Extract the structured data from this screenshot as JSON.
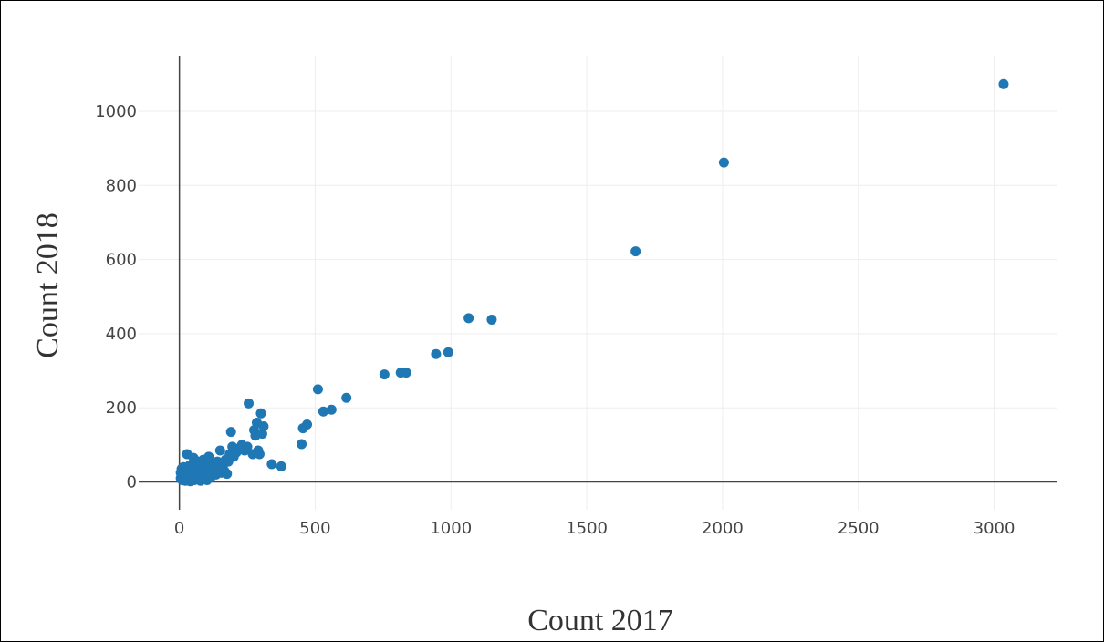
{
  "chart_data": {
    "type": "scatter",
    "xlabel": "Count 2017",
    "ylabel": "Count 2018",
    "xlim": [
      -150,
      3230
    ],
    "ylim": [
      -75,
      1150
    ],
    "x_ticks": [
      0,
      500,
      1000,
      1500,
      2000,
      2500,
      3000
    ],
    "y_ticks": [
      0,
      200,
      400,
      600,
      800,
      1000
    ],
    "grid": true,
    "marker_color": "#1f77b4",
    "gridline_color": "#eeeeee",
    "zeroline_color": "#444444",
    "series": [
      {
        "points": [
          [
            5,
            10
          ],
          [
            5,
            25
          ],
          [
            8,
            35
          ],
          [
            10,
            5
          ],
          [
            12,
            18
          ],
          [
            15,
            40
          ],
          [
            18,
            28
          ],
          [
            20,
            12
          ],
          [
            22,
            3
          ],
          [
            25,
            22
          ],
          [
            28,
            75
          ],
          [
            30,
            8
          ],
          [
            32,
            30
          ],
          [
            35,
            15
          ],
          [
            38,
            45
          ],
          [
            40,
            2
          ],
          [
            42,
            20
          ],
          [
            45,
            10
          ],
          [
            48,
            35
          ],
          [
            50,
            25
          ],
          [
            52,
            65
          ],
          [
            55,
            5
          ],
          [
            58,
            15
          ],
          [
            60,
            40
          ],
          [
            62,
            30
          ],
          [
            65,
            8
          ],
          [
            68,
            55
          ],
          [
            70,
            20
          ],
          [
            72,
            12
          ],
          [
            75,
            45
          ],
          [
            78,
            3
          ],
          [
            80,
            30
          ],
          [
            82,
            50
          ],
          [
            85,
            18
          ],
          [
            88,
            60
          ],
          [
            90,
            8
          ],
          [
            92,
            35
          ],
          [
            95,
            25
          ],
          [
            98,
            40
          ],
          [
            100,
            15
          ],
          [
            102,
            5
          ],
          [
            105,
            30
          ],
          [
            108,
            68
          ],
          [
            110,
            20
          ],
          [
            112,
            50
          ],
          [
            115,
            12
          ],
          [
            118,
            35
          ],
          [
            120,
            25
          ],
          [
            125,
            45
          ],
          [
            130,
            30
          ],
          [
            135,
            20
          ],
          [
            140,
            55
          ],
          [
            145,
            40
          ],
          [
            150,
            85
          ],
          [
            155,
            25
          ],
          [
            160,
            45
          ],
          [
            165,
            30
          ],
          [
            170,
            60
          ],
          [
            175,
            22
          ],
          [
            180,
            55
          ],
          [
            185,
            75
          ],
          [
            190,
            135
          ],
          [
            195,
            95
          ],
          [
            200,
            68
          ],
          [
            210,
            80
          ],
          [
            220,
            90
          ],
          [
            230,
            100
          ],
          [
            240,
            85
          ],
          [
            250,
            95
          ],
          [
            255,
            212
          ],
          [
            270,
            75
          ],
          [
            275,
            140
          ],
          [
            280,
            125
          ],
          [
            285,
            160
          ],
          [
            290,
            85
          ],
          [
            295,
            75
          ],
          [
            300,
            185
          ],
          [
            305,
            130
          ],
          [
            310,
            150
          ],
          [
            340,
            48
          ],
          [
            375,
            42
          ],
          [
            450,
            102
          ],
          [
            455,
            145
          ],
          [
            470,
            155
          ],
          [
            510,
            250
          ],
          [
            530,
            190
          ],
          [
            560,
            195
          ],
          [
            615,
            227
          ],
          [
            755,
            290
          ],
          [
            815,
            295
          ],
          [
            835,
            295
          ],
          [
            945,
            345
          ],
          [
            990,
            350
          ],
          [
            1065,
            442
          ],
          [
            1150,
            438
          ],
          [
            1680,
            622
          ],
          [
            2005,
            862
          ],
          [
            3035,
            1073
          ]
        ]
      }
    ]
  }
}
